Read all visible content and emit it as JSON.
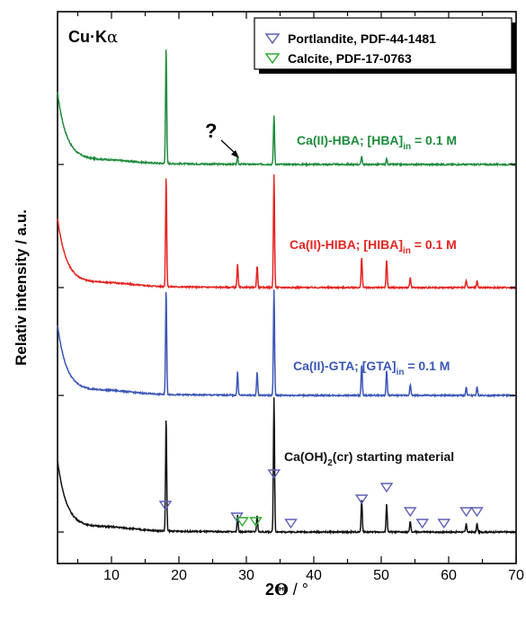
{
  "chart_data": {
    "type": "line",
    "radiation_label_main": "Cu·K",
    "radiation_label_greek": "α",
    "xlabel_main": "2",
    "xlabel_theta": "Θ",
    "xlabel_unit": " / °",
    "ylabel": "Relativ intensity / a.u.",
    "xlim": [
      2,
      70
    ],
    "x_ticks": [
      10,
      20,
      30,
      40,
      50,
      60,
      70
    ],
    "legend": [
      {
        "name": "Portlandite, PDF-44-1481",
        "color": "#5b5fb5"
      },
      {
        "name": "Calcite, PDF-17-0763",
        "color": "#2eaa2e"
      }
    ],
    "question_mark": "?",
    "series": [
      {
        "id": "hba",
        "label": "Ca(II)-HBA; [HBA]",
        "label_sub": "in",
        "label_tail": " = 0.1 M",
        "color": "#1e8c3c",
        "peaks": [
          [
            18.1,
            1.0
          ],
          [
            28.7,
            0.055
          ],
          [
            34.1,
            0.42
          ],
          [
            47.1,
            0.07
          ],
          [
            50.8,
            0.05
          ]
        ]
      },
      {
        "id": "hiba",
        "label": "Ca(II)-HIBA; [HIBA]",
        "label_sub": "in",
        "label_tail": " = 0.1 M",
        "color": "#e52421",
        "peaks": [
          [
            18.1,
            0.98
          ],
          [
            28.7,
            0.2
          ],
          [
            31.6,
            0.19
          ],
          [
            34.1,
            1.0
          ],
          [
            47.1,
            0.27
          ],
          [
            50.8,
            0.25
          ],
          [
            54.3,
            0.09
          ],
          [
            62.6,
            0.06
          ],
          [
            64.2,
            0.06
          ]
        ]
      },
      {
        "id": "gta",
        "label": "Ca(II)-GTA; [GTA]",
        "label_sub": "in",
        "label_tail": " = 0.1 M",
        "color": "#3a56b5",
        "peaks": [
          [
            18.1,
            0.92
          ],
          [
            28.7,
            0.2
          ],
          [
            31.6,
            0.2
          ],
          [
            34.1,
            0.92
          ],
          [
            47.1,
            0.27
          ],
          [
            50.8,
            0.22
          ],
          [
            54.3,
            0.1
          ],
          [
            62.6,
            0.07
          ],
          [
            64.2,
            0.07
          ]
        ]
      },
      {
        "id": "caoh2",
        "label": "Ca(OH)",
        "label_sub": "2",
        "label_tail": "(cr) starting material",
        "color": "#111111",
        "peaks": [
          [
            18.1,
            0.97
          ],
          [
            28.7,
            0.14
          ],
          [
            31.6,
            0.14
          ],
          [
            34.1,
            1.15
          ],
          [
            47.1,
            0.28
          ],
          [
            50.8,
            0.24
          ],
          [
            54.3,
            0.09
          ],
          [
            62.6,
            0.07
          ],
          [
            64.2,
            0.07
          ]
        ]
      }
    ],
    "portlandite_markers": [
      18.0,
      28.6,
      34.1,
      36.6,
      47.1,
      50.8,
      54.3,
      56.1,
      59.3,
      62.6,
      64.2
    ],
    "calcite_markers": [
      29.4,
      31.4
    ]
  }
}
